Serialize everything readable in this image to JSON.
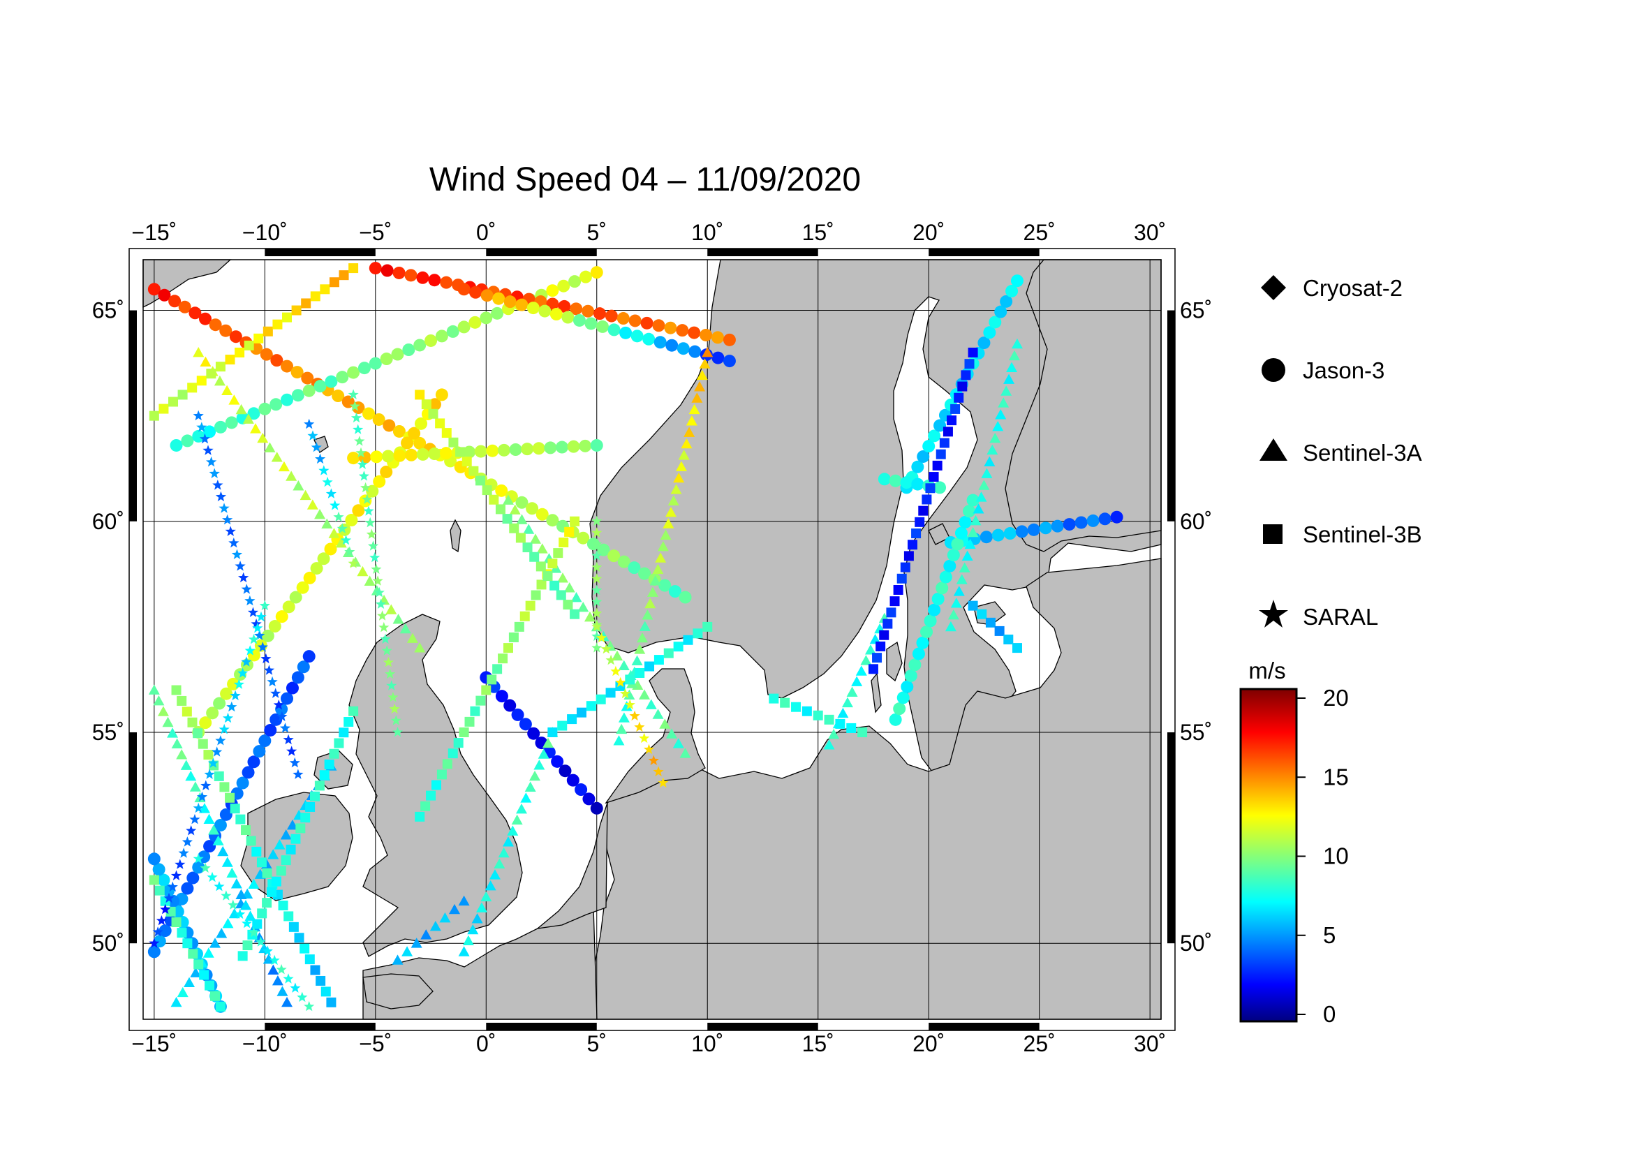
{
  "title": "Wind Speed 04 – 11/09/2020",
  "map": {
    "lon_range": [
      -15.5,
      30.5
    ],
    "lat_range": [
      48.2,
      66.2
    ],
    "lon_ticks": [
      {
        "value": -15,
        "label": "−15˚"
      },
      {
        "value": -10,
        "label": "−10˚"
      },
      {
        "value": -5,
        "label": "−5˚"
      },
      {
        "value": 0,
        "label": "0˚"
      },
      {
        "value": 5,
        "label": "5˚"
      },
      {
        "value": 10,
        "label": "10˚"
      },
      {
        "value": 15,
        "label": "15˚"
      },
      {
        "value": 20,
        "label": "20˚"
      },
      {
        "value": 25,
        "label": "25˚"
      },
      {
        "value": 30,
        "label": "30˚"
      }
    ],
    "lat_ticks": [
      {
        "value": 50,
        "label": "50˚"
      },
      {
        "value": 55,
        "label": "55˚"
      },
      {
        "value": 60,
        "label": "60˚"
      },
      {
        "value": 65,
        "label": "65˚"
      }
    ],
    "land_color": "#bebebe",
    "sea_color": "#ffffff",
    "grid": true
  },
  "legend": {
    "items": [
      {
        "name": "Cryosat-2",
        "symbol": "diamond"
      },
      {
        "name": "Jason-3",
        "symbol": "circle"
      },
      {
        "name": "Sentinel-3A",
        "symbol": "triangle"
      },
      {
        "name": "Sentinel-3B",
        "symbol": "square"
      },
      {
        "name": "SARAL",
        "symbol": "star"
      }
    ]
  },
  "colorbar": {
    "unit": "m/s",
    "min": 0,
    "max": 20,
    "ticks": [
      {
        "value": 0,
        "label": "0"
      },
      {
        "value": 5,
        "label": "5"
      },
      {
        "value": 10,
        "label": "10"
      },
      {
        "value": 15,
        "label": "15"
      },
      {
        "value": 20,
        "label": "20"
      }
    ],
    "colormap": "jet"
  },
  "chart_data": {
    "type": "scatter",
    "x_quantity": "longitude",
    "y_quantity": "latitude",
    "value_unit": "m/s",
    "series": [
      {
        "name": "Jason-3",
        "symbol": "circle",
        "tracks": [
          {
            "from": [
              -15,
              65.5
            ],
            "to": [
              9,
              58.2
            ],
            "v_from": 17,
            "v_to": 9
          },
          {
            "from": [
              -14,
              61.8
            ],
            "to": [
              5,
              65.9
            ],
            "v_from": 8,
            "v_to": 12
          },
          {
            "from": [
              -15,
              49.8
            ],
            "to": [
              -8,
              56.8
            ],
            "v_from": 5,
            "v_to": 4
          },
          {
            "from": [
              -12,
              48.5
            ],
            "to": [
              -15,
              52
            ],
            "v_from": 6,
            "v_to": 6
          },
          {
            "from": [
              0,
              56.3
            ],
            "to": [
              5,
              53.2
            ],
            "v_from": 3,
            "v_to": 2
          },
          {
            "from": [
              -5,
              66
            ],
            "to": [
              11,
              64.3
            ],
            "v_from": 17,
            "v_to": 15
          },
          {
            "from": [
              -1,
              65.5
            ],
            "to": [
              11,
              63.8
            ],
            "v_from": 16,
            "v_to": 3
          },
          {
            "from": [
              -13,
              55
            ],
            "to": [
              -2,
              63
            ],
            "v_from": 11,
            "v_to": 13
          },
          {
            "from": [
              -6,
              61.5
            ],
            "to": [
              5,
              61.8
            ],
            "v_from": 13,
            "v_to": 10
          },
          {
            "from": [
              19,
              60.8
            ],
            "to": [
              24,
              65.7
            ],
            "v_from": 7,
            "v_to": 7
          },
          {
            "from": [
              18,
              61
            ],
            "to": [
              20.5,
              60.8
            ],
            "v_from": 8,
            "v_to": 8
          },
          {
            "from": [
              21,
              59.5
            ],
            "to": [
              28.5,
              60.1
            ],
            "v_from": 7,
            "v_to": 4
          },
          {
            "from": [
              18.5,
              55.3
            ],
            "to": [
              22,
              60.5
            ],
            "v_from": 8,
            "v_to": 8
          }
        ]
      },
      {
        "name": "Sentinel-3A",
        "symbol": "triangle",
        "tracks": [
          {
            "from": [
              -14,
              48.6
            ],
            "to": [
              -7,
              54.2
            ],
            "v_from": 7,
            "v_to": 6
          },
          {
            "from": [
              -9,
              48.6
            ],
            "to": [
              -15,
              56
            ],
            "v_from": 5,
            "v_to": 10
          },
          {
            "from": [
              -13,
              64
            ],
            "to": [
              -3,
              57
            ],
            "v_from": 12,
            "v_to": 10
          },
          {
            "from": [
              1,
              60.5
            ],
            "to": [
              9,
              54.5
            ],
            "v_from": 10,
            "v_to": 9
          },
          {
            "from": [
              -1,
              49.8
            ],
            "to": [
              3,
              55
            ],
            "v_from": 7,
            "v_to": 9
          },
          {
            "from": [
              -4,
              49.6
            ],
            "to": [
              -1,
              51
            ],
            "v_from": 6,
            "v_to": 6
          },
          {
            "from": [
              6,
              54.8
            ],
            "to": [
              10,
              64
            ],
            "v_from": 8,
            "v_to": 14
          },
          {
            "from": [
              15.5,
              54.7
            ],
            "to": [
              18,
              57.7
            ],
            "v_from": 8,
            "v_to": 8
          },
          {
            "from": [
              21,
              57.5
            ],
            "to": [
              24,
              64.2
            ],
            "v_from": 8,
            "v_to": 8
          }
        ]
      },
      {
        "name": "Sentinel-3B",
        "symbol": "square",
        "tracks": [
          {
            "from": [
              -12,
              48.5
            ],
            "to": [
              -15,
              51.5
            ],
            "v_from": 8,
            "v_to": 9
          },
          {
            "from": [
              -7,
              48.6
            ],
            "to": [
              -14,
              56
            ],
            "v_from": 6,
            "v_to": 11
          },
          {
            "from": [
              -11,
              49.7
            ],
            "to": [
              -6,
              55.5
            ],
            "v_from": 8,
            "v_to": 8
          },
          {
            "from": [
              -3,
              53
            ],
            "to": [
              4,
              60
            ],
            "v_from": 8,
            "v_to": 12
          },
          {
            "from": [
              3,
              55
            ],
            "to": [
              10,
              57.5
            ],
            "v_from": 7,
            "v_to": 8
          },
          {
            "from": [
              4,
              57.8
            ],
            "to": [
              -3,
              63
            ],
            "v_from": 9,
            "v_to": 12
          },
          {
            "from": [
              -15,
              62.5
            ],
            "to": [
              -6,
              66
            ],
            "v_from": 11,
            "v_to": 14
          },
          {
            "from": [
              13,
              55.8
            ],
            "to": [
              17,
              55
            ],
            "v_from": 8,
            "v_to": 8
          },
          {
            "from": [
              17.5,
              56.5
            ],
            "to": [
              22,
              64
            ],
            "v_from": 3,
            "v_to": 3
          },
          {
            "from": [
              22,
              58
            ],
            "to": [
              24,
              57
            ],
            "v_from": 6,
            "v_to": 6
          }
        ]
      },
      {
        "name": "SARAL",
        "symbol": "star",
        "tracks": [
          {
            "from": [
              -13,
              62.5
            ],
            "to": [
              -8.5,
              54
            ],
            "v_from": 5,
            "v_to": 4
          },
          {
            "from": [
              -6,
              63
            ],
            "to": [
              -4,
              55
            ],
            "v_from": 9,
            "v_to": 10
          },
          {
            "from": [
              -15,
              50
            ],
            "to": [
              -10,
              58
            ],
            "v_from": 3,
            "v_to": 8
          },
          {
            "from": [
              -8,
              62.3
            ],
            "to": [
              -6,
              59
            ],
            "v_from": 5,
            "v_to": 10
          },
          {
            "from": [
              5,
              60
            ],
            "to": [
              5,
              57
            ],
            "v_from": 10,
            "v_to": 10
          },
          {
            "from": [
              5,
              57.5
            ],
            "to": [
              8,
              53.8
            ],
            "v_from": 11,
            "v_to": 14
          },
          {
            "from": [
              -13,
              52
            ],
            "to": [
              -8,
              48.5
            ],
            "v_from": 8,
            "v_to": 8
          }
        ]
      }
    ]
  }
}
